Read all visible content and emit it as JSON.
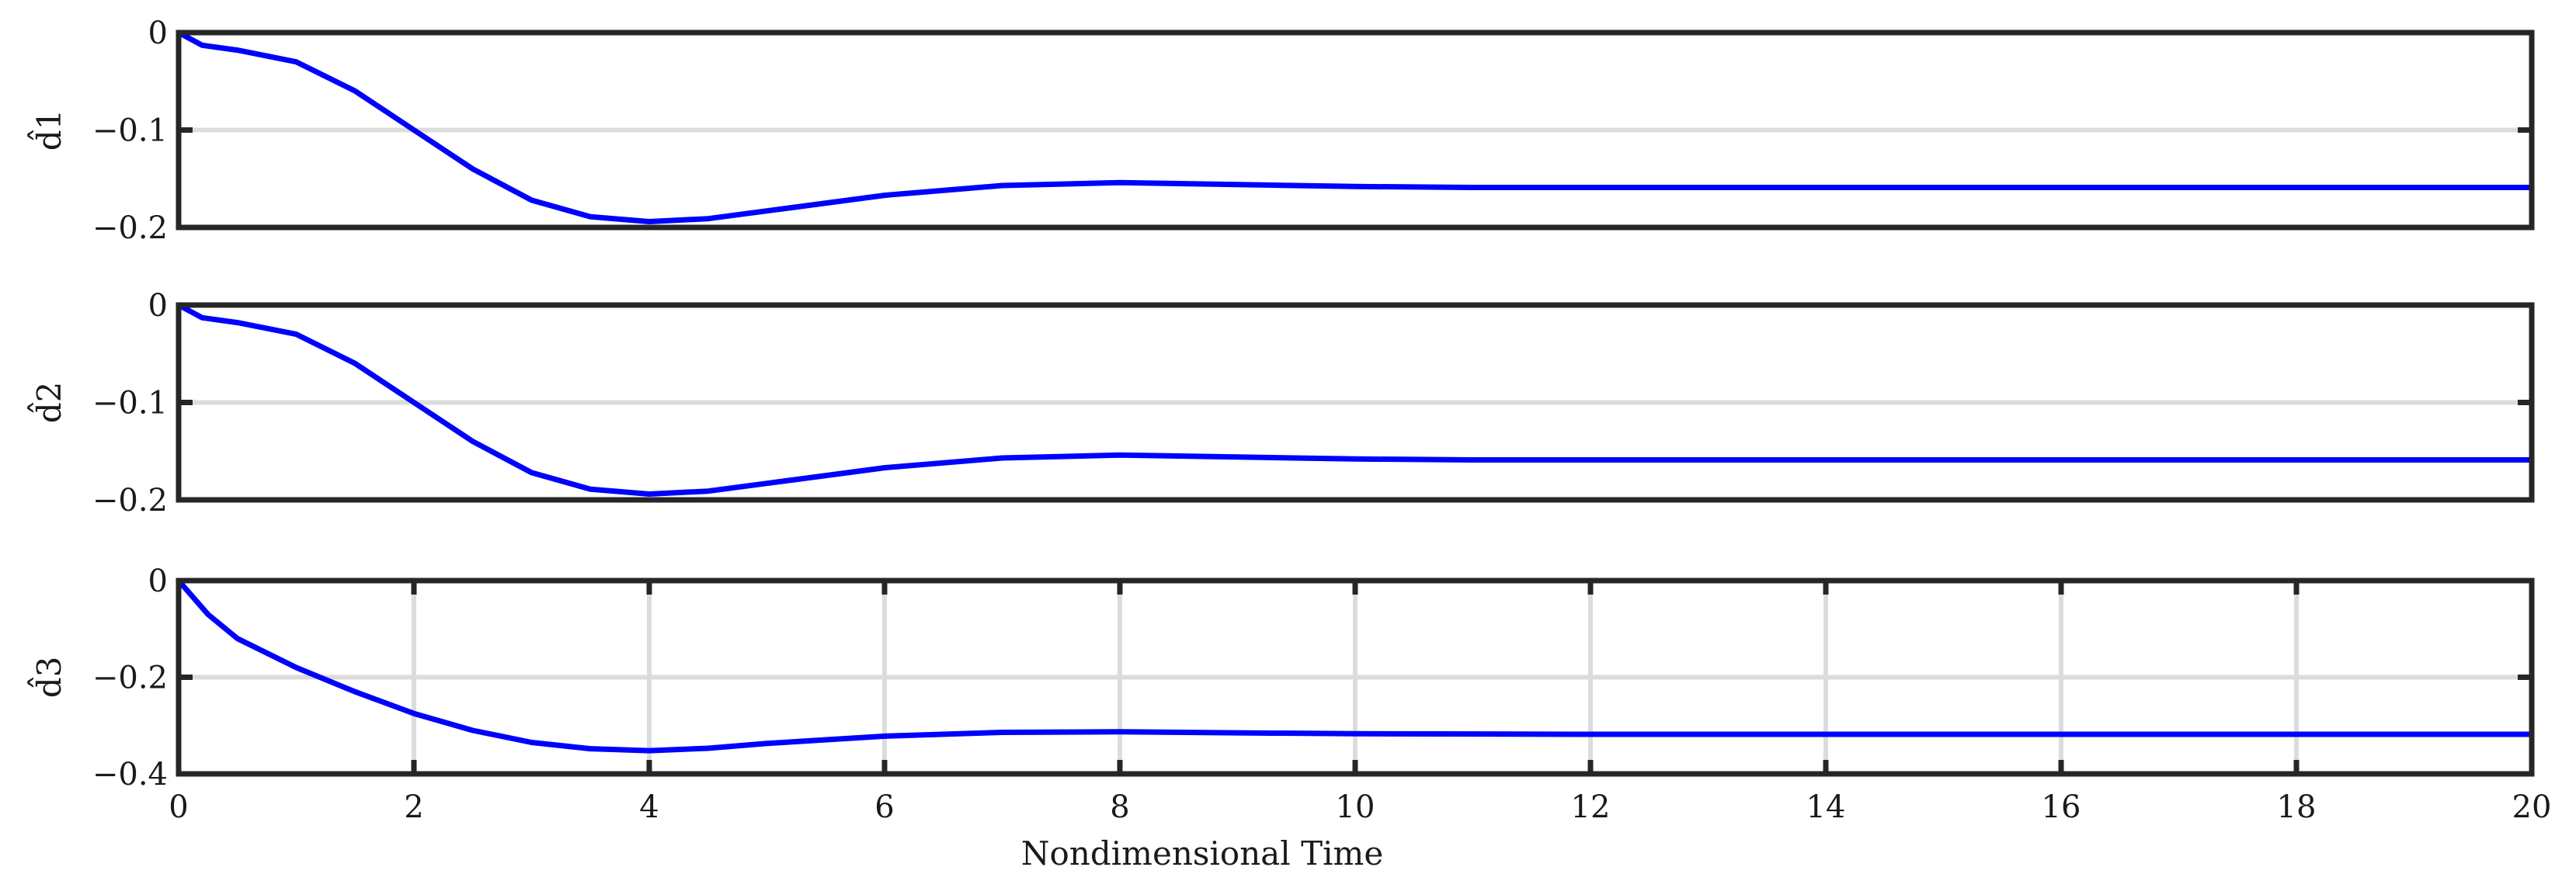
{
  "chart_data": [
    {
      "type": "line",
      "ylabel": "d̂1",
      "xlim": [
        0,
        20
      ],
      "ylim": [
        -0.2,
        0
      ],
      "y_ticks": [
        0,
        -0.1,
        -0.2
      ],
      "y_tick_labels": [
        "0",
        "−0.1",
        "−0.2"
      ],
      "grid_y": true,
      "grid_x": false,
      "color": "#0000ff",
      "series": [
        {
          "x": [
            0,
            0.2,
            0.5,
            1,
            1.5,
            2,
            2.5,
            3,
            3.5,
            4,
            4.5,
            5,
            6,
            7,
            8,
            9,
            10,
            11,
            12,
            14,
            16,
            18,
            20
          ],
          "values": [
            0,
            -0.013,
            -0.018,
            -0.03,
            -0.06,
            -0.1,
            -0.14,
            -0.172,
            -0.189,
            -0.194,
            -0.191,
            -0.183,
            -0.167,
            -0.157,
            -0.154,
            -0.156,
            -0.158,
            -0.159,
            -0.159,
            -0.159,
            -0.159,
            -0.159,
            -0.159
          ]
        }
      ]
    },
    {
      "type": "line",
      "ylabel": "d̂2",
      "xlim": [
        0,
        20
      ],
      "ylim": [
        -0.2,
        0
      ],
      "y_ticks": [
        0,
        -0.1,
        -0.2
      ],
      "y_tick_labels": [
        "0",
        "−0.1",
        "−0.2"
      ],
      "grid_y": true,
      "grid_x": false,
      "color": "#0000ff",
      "series": [
        {
          "x": [
            0,
            0.2,
            0.5,
            1,
            1.5,
            2,
            2.5,
            3,
            3.5,
            4,
            4.5,
            5,
            6,
            7,
            8,
            9,
            10,
            11,
            12,
            14,
            16,
            18,
            20
          ],
          "values": [
            0,
            -0.013,
            -0.018,
            -0.03,
            -0.06,
            -0.1,
            -0.14,
            -0.172,
            -0.189,
            -0.194,
            -0.191,
            -0.183,
            -0.167,
            -0.157,
            -0.154,
            -0.156,
            -0.158,
            -0.159,
            -0.159,
            -0.159,
            -0.159,
            -0.159,
            -0.159
          ]
        }
      ]
    },
    {
      "type": "line",
      "ylabel": "d̂3",
      "xlabel": "Nondimensional Time",
      "xlim": [
        0,
        20
      ],
      "ylim": [
        -0.4,
        0
      ],
      "y_ticks": [
        0,
        -0.2,
        -0.4
      ],
      "y_tick_labels": [
        "0",
        "−0.2",
        "−0.4"
      ],
      "x_ticks": [
        0,
        2,
        4,
        6,
        8,
        10,
        12,
        14,
        16,
        18,
        20
      ],
      "x_tick_labels": [
        "0",
        "2",
        "4",
        "6",
        "8",
        "10",
        "12",
        "14",
        "16",
        "18",
        "20"
      ],
      "grid_y": true,
      "grid_x": true,
      "color": "#0000ff",
      "series": [
        {
          "x": [
            0,
            0.25,
            0.5,
            1,
            1.5,
            2,
            2.5,
            3,
            3.5,
            4,
            4.5,
            5,
            6,
            7,
            8,
            9,
            10,
            12,
            14,
            16,
            18,
            20
          ],
          "values": [
            0,
            -0.07,
            -0.12,
            -0.18,
            -0.23,
            -0.275,
            -0.31,
            -0.335,
            -0.348,
            -0.352,
            -0.347,
            -0.337,
            -0.322,
            -0.314,
            -0.313,
            -0.315,
            -0.317,
            -0.318,
            -0.318,
            -0.318,
            -0.318,
            -0.318
          ]
        }
      ]
    }
  ]
}
